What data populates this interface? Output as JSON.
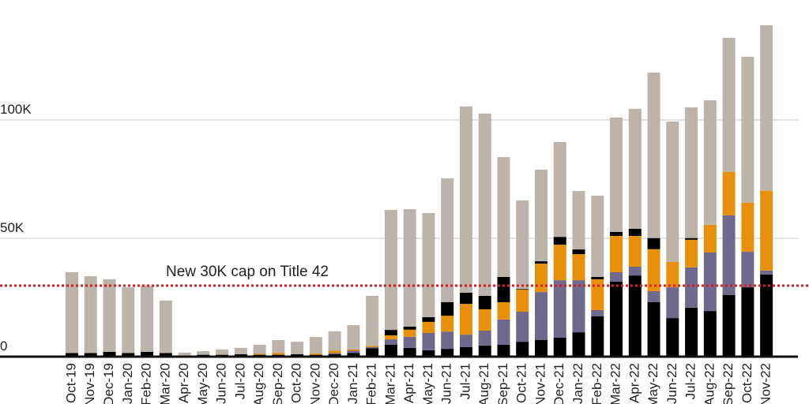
{
  "chart_data": {
    "type": "stacked_bar",
    "categories": [
      "Oct-19",
      "Nov-19",
      "Dec-19",
      "Jan-20",
      "Feb-20",
      "Mar-20",
      "Apr-20",
      "May-20",
      "Jun-20",
      "Jul-20",
      "Aug-20",
      "Sep-20",
      "Oct-20",
      "Nov-20",
      "Dec-20",
      "Jan-21",
      "Feb-21",
      "Mar-21",
      "Apr-21",
      "May-21",
      "Jun-21",
      "Jul-21",
      "Aug-21",
      "Sep-21",
      "Oct-21",
      "Nov-21",
      "Dec-21",
      "Jan-22",
      "Feb-22",
      "Mar-22",
      "Apr-22",
      "May-22",
      "Jun-22",
      "Jul-22",
      "Aug-22",
      "Sep-22",
      "Oct-22",
      "Nov-22"
    ],
    "series": [
      {
        "color": "#000000",
        "values": [
          1500,
          1500,
          2000,
          1500,
          2000,
          1500,
          500,
          800,
          800,
          1000,
          800,
          800,
          1000,
          800,
          1000,
          1500,
          3500,
          5000,
          3700,
          2700,
          3300,
          4000,
          4700,
          5000,
          6300,
          7000,
          8000,
          10300,
          17000,
          31700,
          34300,
          23000,
          16300,
          20700,
          19300,
          26000,
          29300,
          34700
        ]
      },
      {
        "color": "#6f6a8b",
        "values": [
          0,
          0,
          0,
          0,
          0,
          0,
          0,
          0,
          0,
          0,
          0,
          0,
          0,
          0,
          500,
          1000,
          500,
          2300,
          4700,
          7300,
          7300,
          5300,
          6300,
          10700,
          12700,
          20300,
          24300,
          22000,
          2700,
          4000,
          3700,
          4700,
          13000,
          17000,
          24700,
          33700,
          15000,
          1700
        ]
      },
      {
        "color": "#e8900c",
        "values": [
          0,
          0,
          0,
          0,
          0,
          0,
          0,
          0,
          0,
          0,
          500,
          700,
          0,
          500,
          1000,
          500,
          500,
          1700,
          3000,
          4700,
          6700,
          13000,
          9000,
          7300,
          9300,
          12000,
          15000,
          11000,
          13000,
          15300,
          13000,
          17700,
          10700,
          11700,
          11700,
          18300,
          20700,
          33700
        ]
      },
      {
        "color": "#000000",
        "values": [
          0,
          0,
          0,
          0,
          0,
          0,
          0,
          0,
          0,
          0,
          0,
          0,
          0,
          0,
          0,
          0,
          0,
          2300,
          1300,
          2000,
          5700,
          4700,
          5700,
          10700,
          300,
          1000,
          3300,
          2000,
          1000,
          1700,
          3000,
          4700,
          0,
          700,
          0,
          0,
          0,
          0
        ]
      },
      {
        "color": "#bcb4aa",
        "values": [
          34200,
          32500,
          30700,
          27800,
          28000,
          22200,
          1200,
          1500,
          2200,
          2700,
          3700,
          5500,
          5300,
          7000,
          8200,
          10300,
          21200,
          50700,
          49600,
          44000,
          52300,
          78700,
          77000,
          50600,
          37400,
          38700,
          40100,
          24700,
          34300,
          48300,
          50700,
          69900,
          59300,
          55200,
          52600,
          56700,
          61700,
          69900
        ]
      }
    ],
    "ylim": [
      0,
      150000
    ],
    "yticks": [
      0,
      {
        "value": 50000,
        "label": "50K"
      },
      {
        "value": 100000,
        "label": "100K"
      }
    ],
    "grid": true,
    "annotation": {
      "text": "New 30K cap on Title 42",
      "value": 30000
    }
  }
}
